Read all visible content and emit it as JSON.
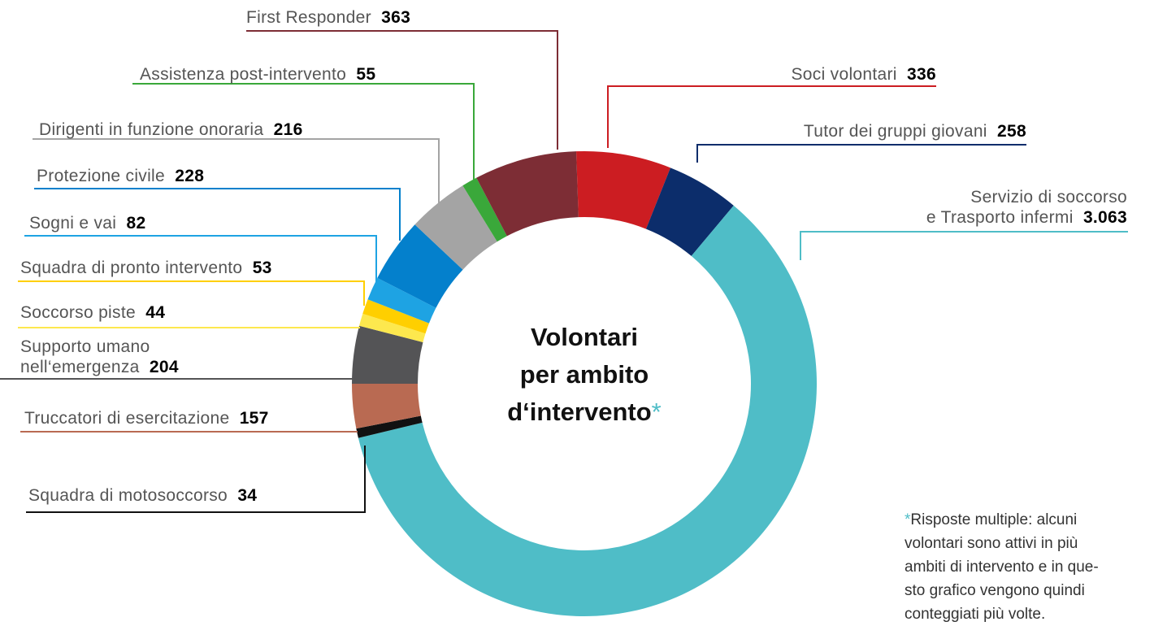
{
  "chart_data": {
    "type": "donut",
    "title": "Volontari\nper ambito\nd‘intervento",
    "title_mark": "*",
    "categories": [
      "Soci volontari",
      "Tutor dei gruppi giovani",
      "Servizio di soccorso\ne Trasporto infermi",
      "Squadra di motosoccorso",
      "Truccatori di esercitazione",
      "Supporto umano\nnell‘emergenza",
      "Soccorso piste",
      "Squadra di pronto intervento",
      "Sogni e vai",
      "Protezione civile",
      "Dirigenti in funzione onoraria",
      "Assistenza post-intervento",
      "First Responder"
    ],
    "values": [
      336,
      258,
      3063,
      34,
      157,
      204,
      44,
      53,
      82,
      228,
      216,
      55,
      363
    ],
    "value_labels": [
      "336",
      "258",
      "3.063",
      "34",
      "157",
      "204",
      "44",
      "53",
      "82",
      "228",
      "216",
      "55",
      "363"
    ],
    "colors": [
      "#cc1d22",
      "#0c2d6b",
      "#4fbdc7",
      "#111111",
      "#b96a52",
      "#545456",
      "#fde84e",
      "#ffcf00",
      "#1ea3e3",
      "#0480cc",
      "#a4a4a4",
      "#3aa83a",
      "#7d2d35"
    ],
    "footnote_mark": "*",
    "footnote": "Risposte multiple: alcuni\nvolontari sono attivi in più\nambiti di intervento e in que-\nsto grafico vengono quindi\nconteggiati più volte."
  }
}
